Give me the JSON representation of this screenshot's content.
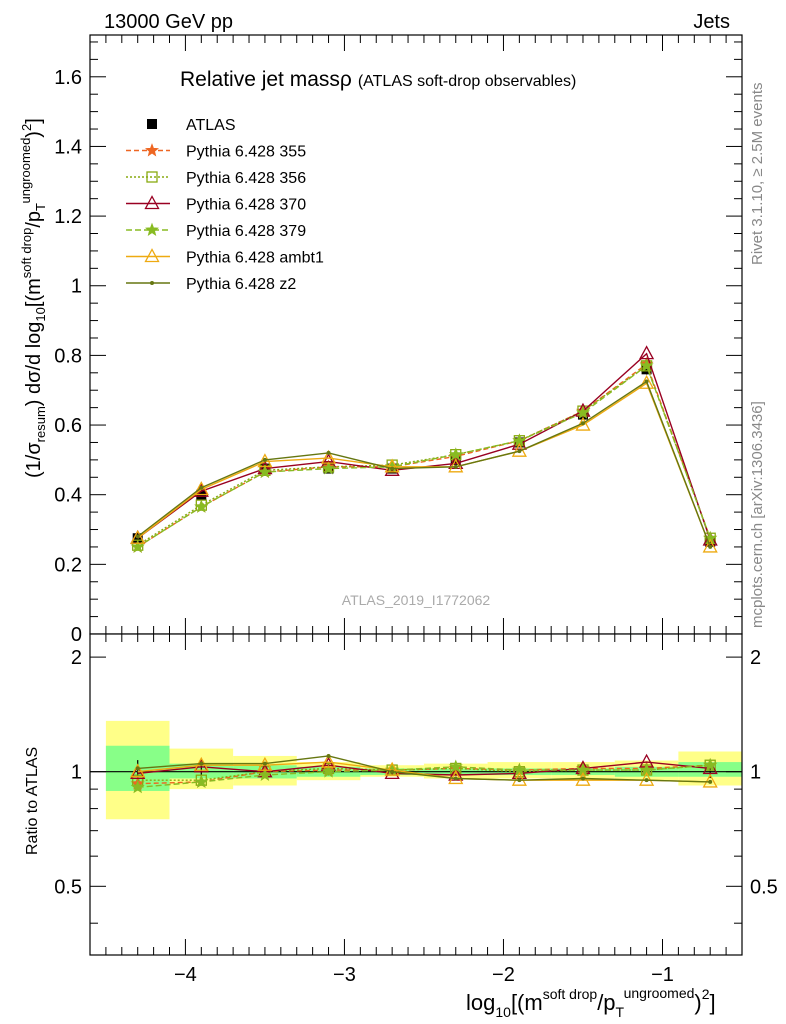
{
  "header": {
    "left": "13000 GeV pp",
    "right": "Jets"
  },
  "side_text": {
    "rivet": "Rivet 3.1.10, ≥ 2.5M events",
    "mcplots": "mcplots.cern.ch [arXiv:1306.3436]"
  },
  "watermark": "ATLAS_2019_I1772062",
  "colors": {
    "atlas": "#000000",
    "p355": "#ee6622",
    "p356": "#88aa11",
    "p370": "#990022",
    "p379": "#88bb22",
    "ambt1": "#eeaa11",
    "z2": "#667711",
    "band_inner": "#88ff88",
    "band_outer": "#ffff88"
  },
  "chart_data": [
    {
      "type": "line",
      "title": "Relative jet massρ",
      "title_suffix": "(ATLAS soft-drop observables)",
      "ylabel": "(1/σ_resum) dσ/d log10[(m^soft drop/pT^ungroomed)2]",
      "xlabel": "log10[(m^soft drop/pT^ungroomed)2]",
      "xlim": [
        -4.6,
        -0.5
      ],
      "ylim": [
        0,
        1.72
      ],
      "yticks": [
        "0",
        "0.2",
        "0.4",
        "0.6",
        "0.8",
        "1",
        "1.2",
        "1.4",
        "1.6"
      ],
      "xticks": [
        "−4",
        "−3",
        "−2",
        "−1"
      ],
      "legend_position": "top-left",
      "x": [
        -4.3,
        -3.9,
        -3.5,
        -3.1,
        -2.7,
        -2.3,
        -1.9,
        -1.5,
        -1.1,
        -0.7
      ],
      "x_edges": [
        -4.5,
        -4.1,
        -3.7,
        -3.3,
        -2.9,
        -2.5,
        -2.1,
        -1.7,
        -1.3,
        -0.9,
        -0.5
      ],
      "series": [
        {
          "name": "ATLAS",
          "key": "atlas",
          "marker": "square",
          "values": [
            0.275,
            0.4,
            0.475,
            0.475,
            0.475,
            0.5,
            0.55,
            0.63,
            0.76,
            0.265
          ],
          "errors": [
            0.02,
            0.015,
            0.012,
            0.01,
            0.01,
            0.01,
            0.01,
            0.012,
            0.015,
            0.01
          ]
        },
        {
          "name": "Pythia 6.428 355",
          "key": "p355",
          "marker": "star",
          "dash": "5,3",
          "values": [
            0.25,
            0.365,
            0.465,
            0.48,
            0.48,
            0.51,
            0.555,
            0.64,
            0.775,
            0.275
          ]
        },
        {
          "name": "Pythia 6.428 356",
          "key": "p356",
          "marker": "open-square",
          "dash": "2,2",
          "values": [
            0.255,
            0.37,
            0.47,
            0.48,
            0.485,
            0.515,
            0.555,
            0.64,
            0.77,
            0.275
          ]
        },
        {
          "name": "Pythia 6.428 370",
          "key": "p370",
          "marker": "open-triangle",
          "values": [
            0.275,
            0.41,
            0.475,
            0.495,
            0.47,
            0.49,
            0.545,
            0.64,
            0.805,
            0.27
          ]
        },
        {
          "name": "Pythia 6.428 379",
          "key": "p379",
          "marker": "star",
          "dash": "6,3",
          "values": [
            0.25,
            0.365,
            0.465,
            0.475,
            0.48,
            0.515,
            0.555,
            0.635,
            0.77,
            0.275
          ]
        },
        {
          "name": "Pythia 6.428 ambt1",
          "key": "ambt1",
          "marker": "open-triangle",
          "values": [
            0.275,
            0.415,
            0.495,
            0.505,
            0.48,
            0.48,
            0.525,
            0.6,
            0.72,
            0.25
          ]
        },
        {
          "name": "Pythia 6.428 z2",
          "key": "z2",
          "marker": "dot",
          "values": [
            0.28,
            0.42,
            0.5,
            0.52,
            0.475,
            0.48,
            0.525,
            0.605,
            0.725,
            0.25
          ]
        }
      ]
    },
    {
      "type": "line",
      "ylabel": "Ratio to ATLAS",
      "ylim": [
        0.33,
        2.3
      ],
      "log_y": true,
      "yticks": [
        "0.5",
        "1",
        "2"
      ],
      "band_inner": [
        [
          0.89,
          1.17
        ],
        [
          0.96,
          1.05
        ],
        [
          0.96,
          1.04
        ],
        [
          0.97,
          1.03
        ],
        [
          0.98,
          1.02
        ],
        [
          0.98,
          1.02
        ],
        [
          0.98,
          1.02
        ],
        [
          0.98,
          1.02
        ],
        [
          0.97,
          1.03
        ],
        [
          0.97,
          1.06
        ]
      ],
      "band_outer": [
        [
          0.75,
          1.36
        ],
        [
          0.9,
          1.15
        ],
        [
          0.92,
          1.1
        ],
        [
          0.95,
          1.06
        ],
        [
          0.97,
          1.04
        ],
        [
          0.96,
          1.05
        ],
        [
          0.96,
          1.06
        ],
        [
          0.96,
          1.06
        ],
        [
          0.95,
          1.07
        ],
        [
          0.92,
          1.13
        ]
      ],
      "series": [
        {
          "key": "p355",
          "marker": "star",
          "dash": "5,3",
          "values": [
            0.93,
            0.94,
            1.0,
            1.01,
            1.01,
            1.02,
            1.01,
            1.02,
            1.02,
            1.04
          ]
        },
        {
          "key": "p356",
          "marker": "open-square",
          "dash": "2,2",
          "values": [
            0.95,
            0.95,
            1.0,
            1.02,
            1.01,
            1.02,
            1.0,
            1.01,
            1.01,
            1.04
          ]
        },
        {
          "key": "p370",
          "marker": "open-triangle",
          "values": [
            0.99,
            1.03,
            1.0,
            1.04,
            0.99,
            0.98,
            0.99,
            1.02,
            1.06,
            1.02
          ]
        },
        {
          "key": "p379",
          "marker": "star",
          "dash": "6,3",
          "values": [
            0.91,
            0.94,
            0.98,
            1.0,
            1.01,
            1.03,
            1.01,
            1.01,
            1.01,
            1.04
          ]
        },
        {
          "key": "ambt1",
          "marker": "open-triangle",
          "values": [
            1.0,
            1.04,
            1.04,
            1.06,
            1.01,
            0.96,
            0.95,
            0.95,
            0.95,
            0.94
          ]
        },
        {
          "key": "z2",
          "marker": "dot",
          "values": [
            1.02,
            1.05,
            1.05,
            1.1,
            1.0,
            0.96,
            0.95,
            0.96,
            0.95,
            0.94
          ]
        }
      ]
    }
  ]
}
